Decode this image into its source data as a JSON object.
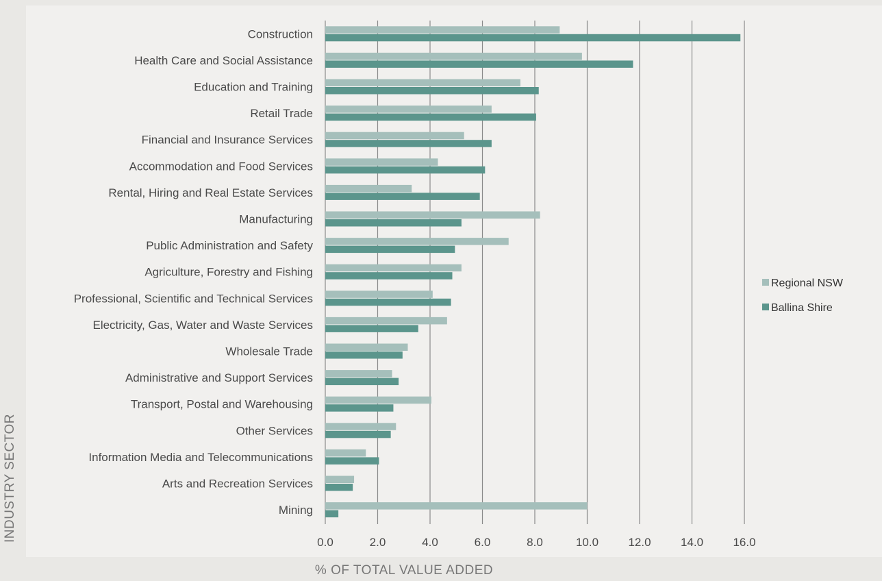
{
  "chart_data": {
    "type": "bar",
    "orientation": "horizontal",
    "xlabel": "% OF TOTAL VALUE ADDED",
    "ylabel": "INDUSTRY SECTOR",
    "xlim": [
      0,
      16
    ],
    "xticks": [
      "0.0",
      "2.0",
      "4.0",
      "6.0",
      "8.0",
      "10.0",
      "12.0",
      "14.0",
      "16.0"
    ],
    "grid": "vertical",
    "legend_position": "right",
    "categories": [
      "Construction",
      "Health Care and Social Assistance",
      "Education and Training",
      "Retail Trade",
      "Financial and Insurance Services",
      "Accommodation and Food Services",
      "Rental, Hiring and Real Estate Services",
      "Manufacturing",
      "Public Administration and Safety",
      "Agriculture, Forestry and Fishing",
      "Professional, Scientific and Technical Services",
      "Electricity, Gas, Water and Waste Services",
      "Wholesale Trade",
      "Administrative and Support Services",
      "Transport, Postal and Warehousing",
      "Other Services",
      "Information Media and Telecommunications",
      "Arts and Recreation Services",
      "Mining"
    ],
    "series": [
      {
        "name": "Regional NSW",
        "color": "#a5bfbb",
        "values": [
          8.95,
          9.8,
          7.45,
          6.35,
          5.3,
          4.3,
          3.3,
          8.2,
          7.0,
          5.2,
          4.1,
          4.65,
          3.15,
          2.55,
          4.05,
          2.7,
          1.55,
          1.1,
          10.0
        ]
      },
      {
        "name": "Ballina Shire",
        "color": "#5b958c",
        "values": [
          15.85,
          11.75,
          8.15,
          8.05,
          6.35,
          6.1,
          5.9,
          5.2,
          4.95,
          4.85,
          4.8,
          3.55,
          2.95,
          2.8,
          2.6,
          2.5,
          2.05,
          1.05,
          0.5
        ]
      }
    ]
  }
}
